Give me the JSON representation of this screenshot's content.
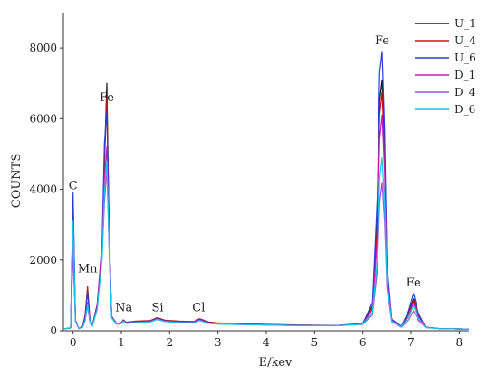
{
  "chart_data": {
    "type": "line",
    "title": "",
    "xlabel": "E/kev",
    "ylabel": "COUNTS",
    "xlim": [
      -0.2,
      8.2
    ],
    "ylim": [
      0,
      9000
    ],
    "x_ticks": [
      0,
      1,
      2,
      3,
      4,
      5,
      6,
      7,
      8
    ],
    "y_ticks": [
      0,
      2000,
      4000,
      6000,
      8000
    ],
    "legend_position": "top-right",
    "grid": false,
    "annotations": [
      {
        "text": "C",
        "x": 0.0,
        "y": 4000
      },
      {
        "text": "Mn",
        "x": 0.3,
        "y": 1650
      },
      {
        "text": "Fe",
        "x": 0.7,
        "y": 6500
      },
      {
        "text": "Na",
        "x": 1.05,
        "y": 550
      },
      {
        "text": "Si",
        "x": 1.75,
        "y": 550
      },
      {
        "text": "Cl",
        "x": 2.6,
        "y": 550
      },
      {
        "text": "Fe",
        "x": 6.4,
        "y": 8100
      },
      {
        "text": "Fe",
        "x": 7.05,
        "y": 1250
      }
    ],
    "x": [
      -0.2,
      -0.05,
      0.0,
      0.05,
      0.12,
      0.2,
      0.25,
      0.3,
      0.35,
      0.4,
      0.5,
      0.6,
      0.65,
      0.7,
      0.75,
      0.8,
      0.9,
      1.0,
      1.04,
      1.1,
      1.3,
      1.6,
      1.74,
      1.9,
      2.2,
      2.5,
      2.62,
      2.8,
      3.0,
      3.5,
      4.0,
      4.5,
      5.0,
      5.5,
      6.0,
      6.2,
      6.3,
      6.35,
      6.4,
      6.45,
      6.5,
      6.6,
      6.8,
      6.95,
      7.05,
      7.15,
      7.3,
      7.6,
      8.0,
      8.2
    ],
    "series": [
      {
        "name": "U_1",
        "color": "#1a1a1a",
        "values": [
          50,
          80,
          3600,
          300,
          60,
          120,
          400,
          1200,
          300,
          150,
          700,
          2200,
          4800,
          7000,
          2500,
          400,
          200,
          220,
          300,
          230,
          260,
          280,
          360,
          290,
          260,
          250,
          330,
          240,
          210,
          190,
          170,
          160,
          150,
          150,
          200,
          700,
          3200,
          6500,
          7100,
          5200,
          1800,
          300,
          120,
          500,
          900,
          450,
          100,
          60,
          50,
          40
        ]
      },
      {
        "name": "U_4",
        "color": "#c0181c",
        "values": [
          50,
          80,
          3400,
          300,
          60,
          130,
          450,
          1250,
          320,
          160,
          750,
          2300,
          4700,
          6600,
          2400,
          400,
          210,
          230,
          310,
          240,
          270,
          290,
          370,
          300,
          270,
          260,
          340,
          250,
          220,
          200,
          180,
          165,
          155,
          150,
          200,
          650,
          3000,
          6100,
          6750,
          5000,
          1700,
          300,
          120,
          470,
          850,
          430,
          100,
          60,
          50,
          40
        ]
      },
      {
        "name": "U_6",
        "color": "#2b3fd6",
        "values": [
          50,
          80,
          3900,
          300,
          60,
          110,
          380,
          1100,
          280,
          140,
          720,
          2500,
          5300,
          6200,
          2700,
          400,
          200,
          220,
          300,
          230,
          250,
          270,
          350,
          280,
          250,
          240,
          320,
          230,
          200,
          180,
          165,
          155,
          150,
          150,
          210,
          800,
          3800,
          7300,
          7900,
          5700,
          1900,
          320,
          130,
          560,
          1050,
          500,
          100,
          60,
          50,
          40
        ]
      },
      {
        "name": "D_1",
        "color": "#c21fb4",
        "values": [
          50,
          80,
          2600,
          280,
          60,
          100,
          300,
          800,
          240,
          140,
          650,
          2400,
          4300,
          5200,
          2300,
          380,
          190,
          210,
          280,
          220,
          240,
          260,
          330,
          270,
          240,
          230,
          300,
          220,
          200,
          180,
          160,
          150,
          145,
          145,
          190,
          600,
          2600,
          5400,
          6100,
          4500,
          1600,
          280,
          110,
          430,
          780,
          400,
          100,
          60,
          50,
          40
        ]
      },
      {
        "name": "D_4",
        "color": "#9a55d9",
        "values": [
          50,
          80,
          2200,
          260,
          60,
          100,
          280,
          700,
          230,
          130,
          600,
          2100,
          3600,
          4600,
          2100,
          360,
          180,
          200,
          270,
          210,
          230,
          250,
          320,
          260,
          230,
          220,
          290,
          210,
          190,
          175,
          160,
          150,
          145,
          145,
          180,
          450,
          1700,
          3600,
          4200,
          3100,
          1200,
          250,
          100,
          300,
          560,
          300,
          90,
          60,
          50,
          40
        ]
      },
      {
        "name": "D_6",
        "color": "#17c6e6",
        "values": [
          50,
          80,
          3100,
          280,
          60,
          100,
          300,
          750,
          240,
          130,
          600,
          2000,
          3900,
          4800,
          2200,
          360,
          180,
          200,
          270,
          210,
          230,
          250,
          320,
          260,
          230,
          220,
          290,
          210,
          190,
          175,
          160,
          150,
          145,
          145,
          185,
          520,
          2000,
          4300,
          4900,
          3600,
          1400,
          260,
          110,
          380,
          700,
          360,
          90,
          60,
          50,
          40
        ]
      }
    ]
  }
}
